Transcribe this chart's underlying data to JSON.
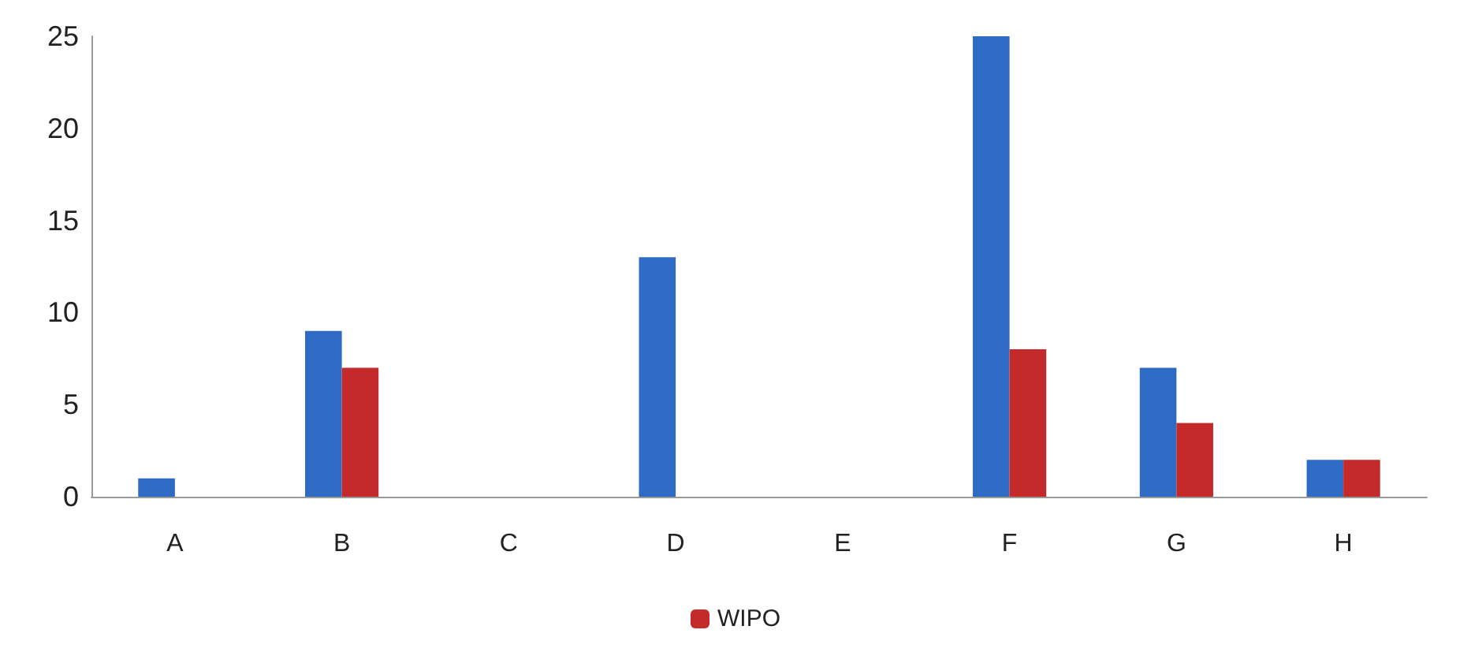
{
  "chart_data": {
    "type": "bar",
    "categories": [
      "A",
      "B",
      "C",
      "D",
      "E",
      "F",
      "G",
      "H"
    ],
    "series": [
      {
        "color": "#2e6bc4",
        "values": [
          1,
          9,
          0,
          13,
          0,
          25,
          7,
          2
        ]
      },
      {
        "name": "WIPO",
        "color": "#c42a2a",
        "values": [
          0,
          7,
          0,
          0,
          0,
          8,
          4,
          2
        ]
      }
    ],
    "ylim": [
      0,
      25
    ],
    "yticks": [
      0,
      5,
      10,
      15,
      20,
      25
    ],
    "grid": false,
    "legend": "bottom"
  }
}
